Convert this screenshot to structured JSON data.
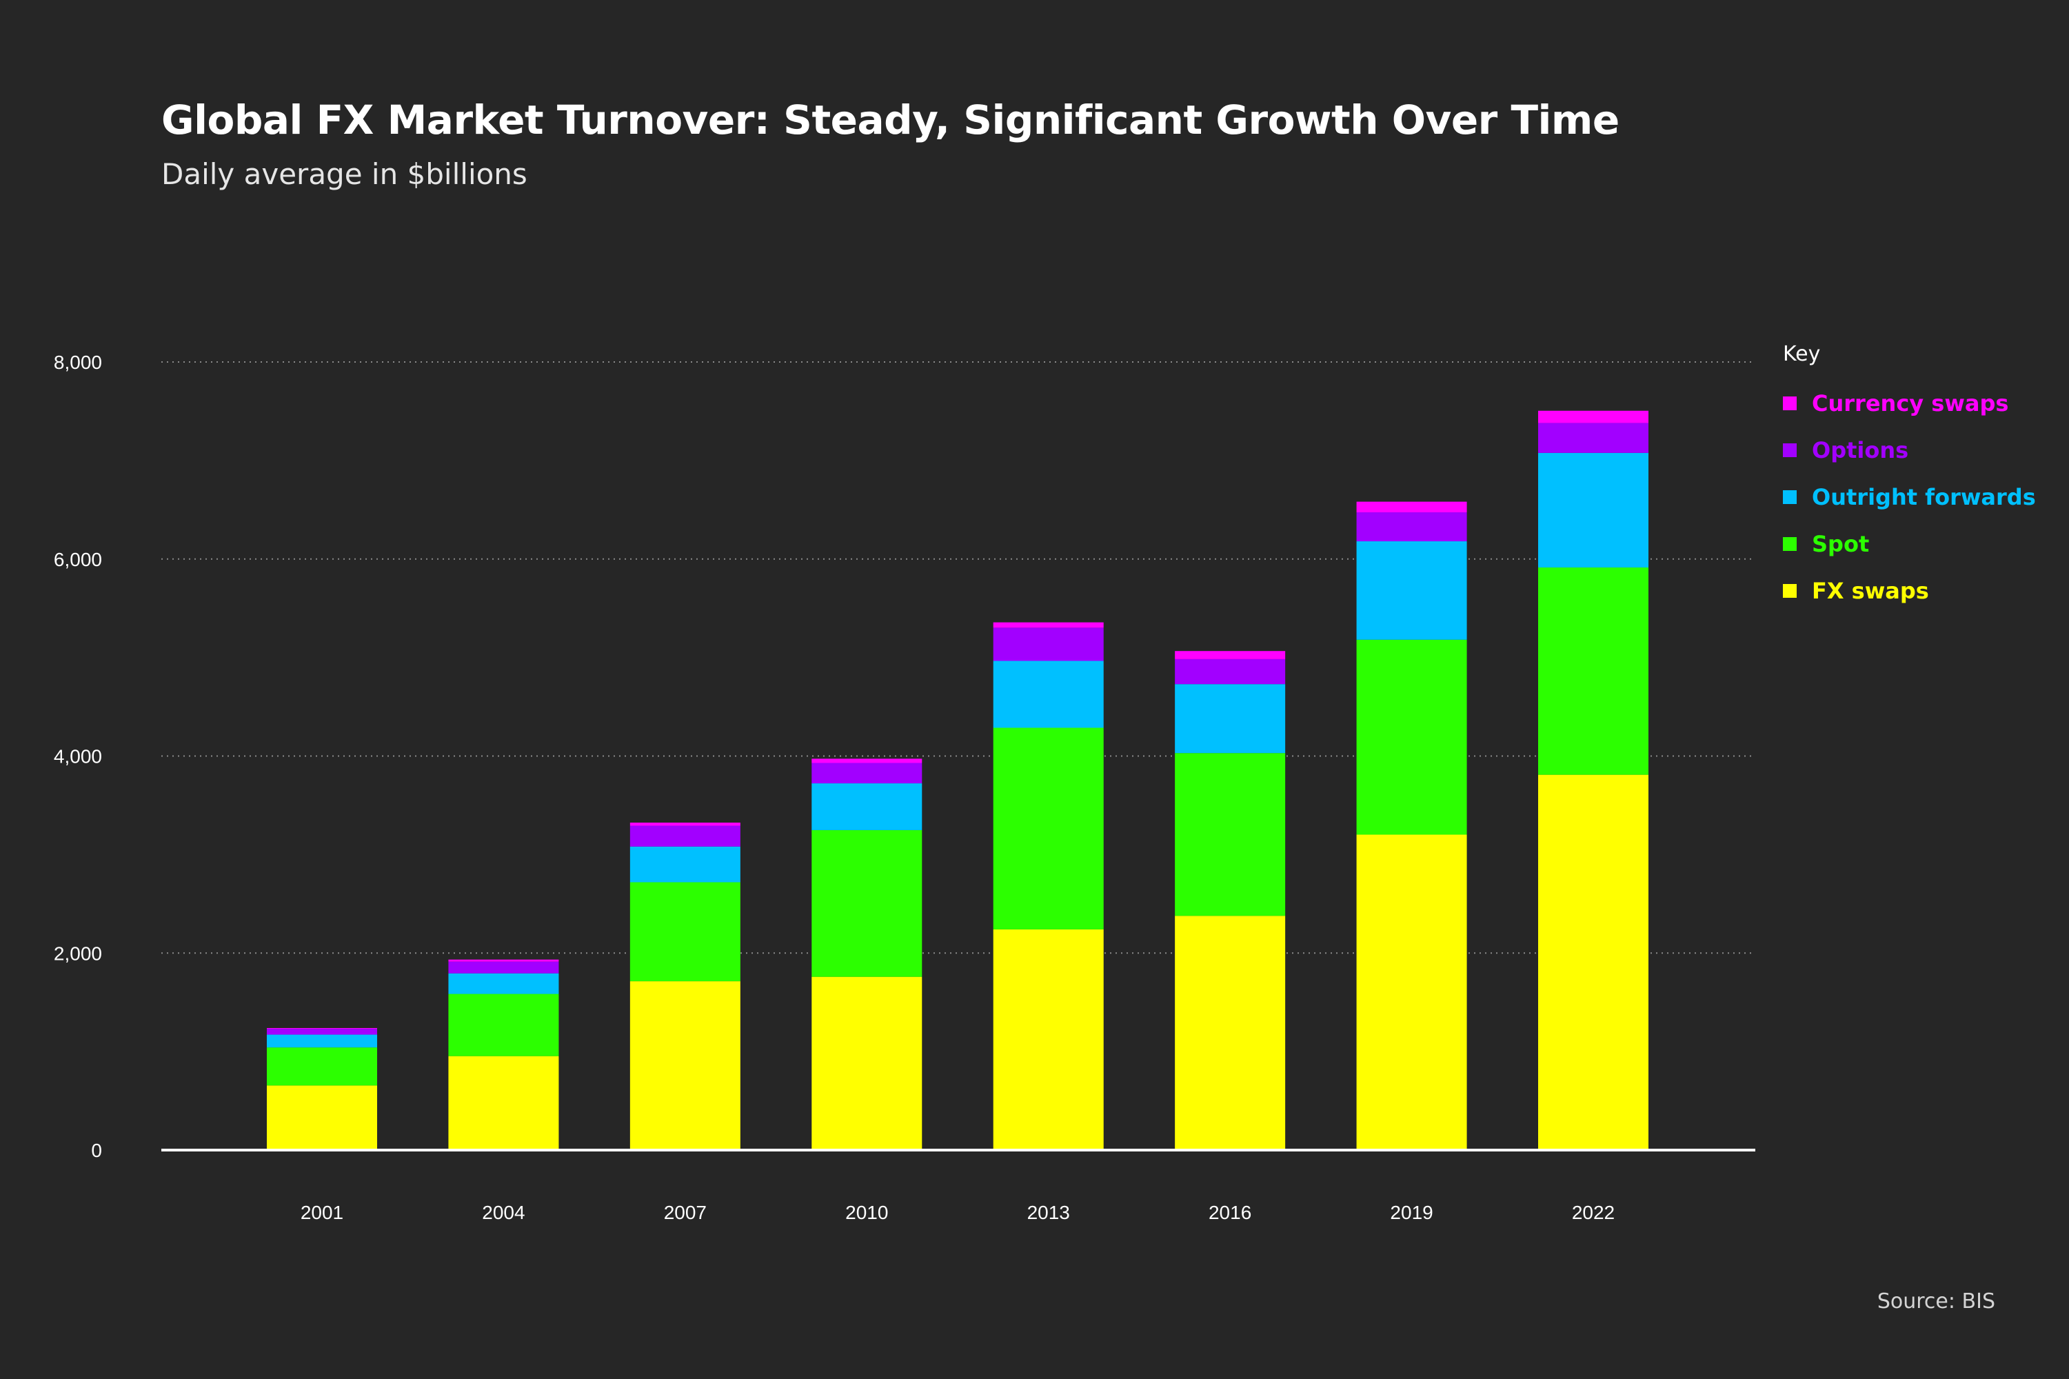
{
  "chart_data": {
    "type": "bar",
    "stacked": true,
    "title": "Global FX Market Turnover: Steady, Significant Growth Over Time",
    "subtitle": "Daily average in $billions",
    "xlabel": "",
    "ylabel": "",
    "ylim": [
      0,
      8000
    ],
    "yticks": [
      0,
      2000,
      4000,
      6000,
      8000
    ],
    "ytick_labels": [
      "0",
      "2,000",
      "4,000",
      "6,000",
      "8,000"
    ],
    "grid": "horizontal dotted",
    "categories": [
      "2001",
      "2004",
      "2007",
      "2010",
      "2013",
      "2016",
      "2019",
      "2022"
    ],
    "series": [
      {
        "name": "FX swaps",
        "color": "#ffff00",
        "values": [
          656,
          954,
          1714,
          1759,
          2240,
          2378,
          3202,
          3810
        ]
      },
      {
        "name": "Spot",
        "color": "#2cff00",
        "values": [
          386,
          631,
          1005,
          1489,
          2047,
          1652,
          1979,
          2104
        ]
      },
      {
        "name": "Outright forwards",
        "color": "#00c0ff",
        "values": [
          130,
          209,
          362,
          475,
          679,
          700,
          999,
          1163
        ]
      },
      {
        "name": "Options",
        "color": "#a200ff",
        "values": [
          60,
          119,
          212,
          207,
          337,
          254,
          294,
          304
        ]
      },
      {
        "name": "Currency swaps",
        "color": "#ff00ff",
        "values": [
          7,
          21,
          31,
          43,
          54,
          82,
          108,
          124
        ]
      }
    ],
    "legend_title": "Key",
    "legend_order": [
      "Currency swaps",
      "Options",
      "Outright forwards",
      "Spot",
      "FX swaps"
    ],
    "legend_position": "right",
    "source": "Source: BIS"
  }
}
